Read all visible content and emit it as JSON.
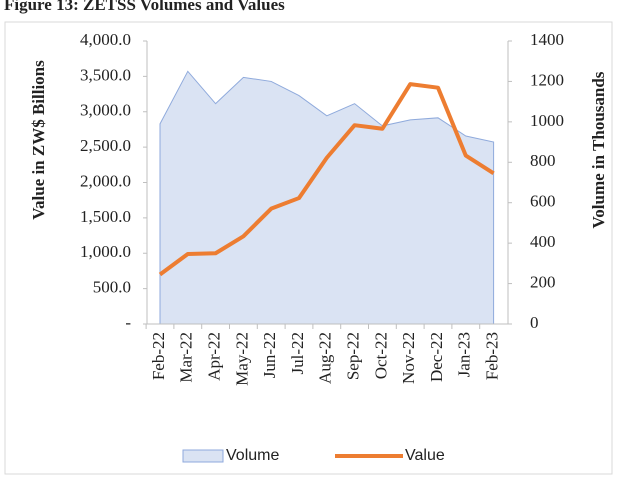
{
  "chart_data": {
    "type": "area_line",
    "title": "Figure 13: ZETSS Volumes and Values",
    "y_label": "Value in ZW$ Billions",
    "y2_label": "Volume in Thousands",
    "categories": [
      "Feb-22",
      "Mar-22",
      "Apr-22",
      "May-22",
      "Jun-22",
      "Jul-22",
      "Aug-22",
      "Sep-22",
      "Oct-22",
      "Nov-22",
      "Dec-22",
      "Jan-23",
      "Feb-23"
    ],
    "series": [
      {
        "name": "Volume",
        "type": "area",
        "axis": "y2",
        "color": "#dae3f3",
        "edge_color": "#8faadc",
        "values": [
          990,
          1250,
          1090,
          1220,
          1200,
          1130,
          1030,
          1090,
          980,
          1010,
          1020,
          930,
          900
        ]
      },
      {
        "name": "Value",
        "type": "line",
        "axis": "y",
        "color": "#ed7d31",
        "values": [
          700,
          990,
          1000,
          1240,
          1630,
          1780,
          2350,
          2810,
          2760,
          3390,
          3340,
          2380,
          2130
        ]
      }
    ],
    "ylim": [
      0,
      4000
    ],
    "yticks": [
      {
        "value": 0,
        "label": "-"
      },
      {
        "value": 500,
        "label": "500.0"
      },
      {
        "value": 1000,
        "label": "1,000.0"
      },
      {
        "value": 1500,
        "label": "1,500.0"
      },
      {
        "value": 2000,
        "label": "2,000.0"
      },
      {
        "value": 2500,
        "label": "2,500.0"
      },
      {
        "value": 3000,
        "label": "3,000.0"
      },
      {
        "value": 3500,
        "label": "3,500.0"
      },
      {
        "value": 4000,
        "label": "4,000.0"
      }
    ],
    "y2lim": [
      0,
      1400
    ],
    "y2ticks": [
      0,
      200,
      400,
      600,
      800,
      1000,
      1200,
      1400
    ],
    "legend": "bottom"
  }
}
